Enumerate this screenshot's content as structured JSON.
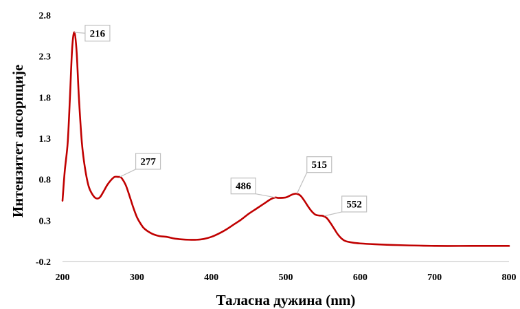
{
  "chart_data": {
    "type": "line",
    "xlabel": "Таласна  дужина (nm)",
    "ylabel": "Интензитет  апсорпције",
    "xlim": [
      200,
      800
    ],
    "ylim": [
      -0.2,
      2.8
    ],
    "x_ticks": [
      "200",
      "300",
      "400",
      "500",
      "600",
      "700",
      "800"
    ],
    "y_ticks": [
      "2.8",
      "2.3",
      "1.8",
      "1.3",
      "0.8",
      "0.3",
      "-0.2"
    ],
    "grid": false,
    "legend": "none",
    "line_color": "#c00000",
    "series": [
      {
        "x": [
          200,
          203,
          207,
          210,
          213,
          216,
          219,
          222,
          226,
          230,
          235,
          240,
          245,
          250,
          255,
          260,
          265,
          270,
          275,
          277,
          280,
          285,
          290,
          295,
          300,
          305,
          310,
          320,
          330,
          340,
          350,
          360,
          370,
          380,
          390,
          400,
          410,
          420,
          430,
          440,
          450,
          460,
          470,
          480,
          486,
          490,
          500,
          505,
          510,
          515,
          520,
          525,
          530,
          535,
          540,
          545,
          550,
          555,
          560,
          565,
          570,
          575,
          580,
          590,
          600,
          620,
          650,
          700,
          750,
          800
        ],
        "y": [
          0.54,
          0.9,
          1.25,
          1.8,
          2.4,
          2.59,
          2.35,
          1.8,
          1.25,
          0.95,
          0.72,
          0.62,
          0.57,
          0.58,
          0.65,
          0.73,
          0.79,
          0.83,
          0.83,
          0.83,
          0.81,
          0.73,
          0.6,
          0.46,
          0.34,
          0.26,
          0.2,
          0.14,
          0.11,
          0.1,
          0.08,
          0.07,
          0.065,
          0.065,
          0.075,
          0.1,
          0.14,
          0.19,
          0.25,
          0.31,
          0.38,
          0.44,
          0.5,
          0.56,
          0.58,
          0.575,
          0.58,
          0.6,
          0.62,
          0.625,
          0.6,
          0.54,
          0.47,
          0.41,
          0.37,
          0.36,
          0.355,
          0.33,
          0.27,
          0.2,
          0.13,
          0.08,
          0.05,
          0.03,
          0.02,
          0.01,
          0.0,
          -0.01,
          -0.01,
          -0.01
        ]
      }
    ],
    "annotations": [
      {
        "label": "216",
        "x": 216,
        "y": 2.59,
        "box_x": 247,
        "box_y": 2.58
      },
      {
        "label": "277",
        "x": 277,
        "y": 0.83,
        "box_x": 315,
        "box_y": 1.02
      },
      {
        "label": "486",
        "x": 486,
        "y": 0.58,
        "box_x": 443,
        "box_y": 0.72
      },
      {
        "label": "515",
        "x": 515,
        "y": 0.625,
        "box_x": 545,
        "box_y": 0.98
      },
      {
        "label": "552",
        "x": 552,
        "y": 0.355,
        "box_x": 592,
        "box_y": 0.5
      }
    ]
  }
}
